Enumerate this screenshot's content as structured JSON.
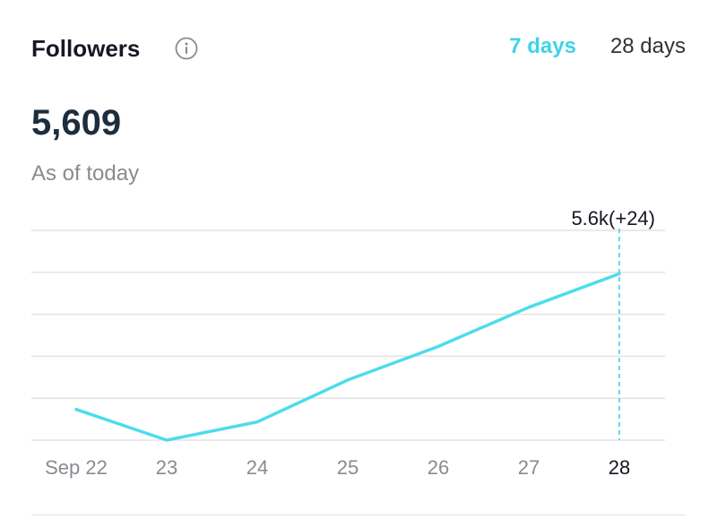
{
  "header": {
    "title": "Followers",
    "tabs": [
      {
        "label": "7 days",
        "active": true
      },
      {
        "label": "28 days",
        "active": false
      }
    ]
  },
  "summary": {
    "value": "5,609",
    "caption": "As of today"
  },
  "tooltip": {
    "label": "5.6k(+24)"
  },
  "colors": {
    "accent": "#3fd3e6",
    "line": "#4ddcec",
    "grid": "#e3e3e6",
    "tick": "#8a8b91",
    "tick_active": "#161823",
    "title": "#161823",
    "metric": "#1e2d3e"
  },
  "chart_data": {
    "type": "line",
    "title": "",
    "xlabel": "",
    "ylabel": "",
    "categories": [
      "Sep 22",
      "23",
      "24",
      "25",
      "26",
      "27",
      "28"
    ],
    "series": [
      {
        "values": [
          5512,
          5490,
          5503,
          5533,
          5557,
          5585,
          5609
        ]
      }
    ],
    "ylim": [
      5490,
      5640
    ],
    "grid": true,
    "highlight_index": 6
  }
}
